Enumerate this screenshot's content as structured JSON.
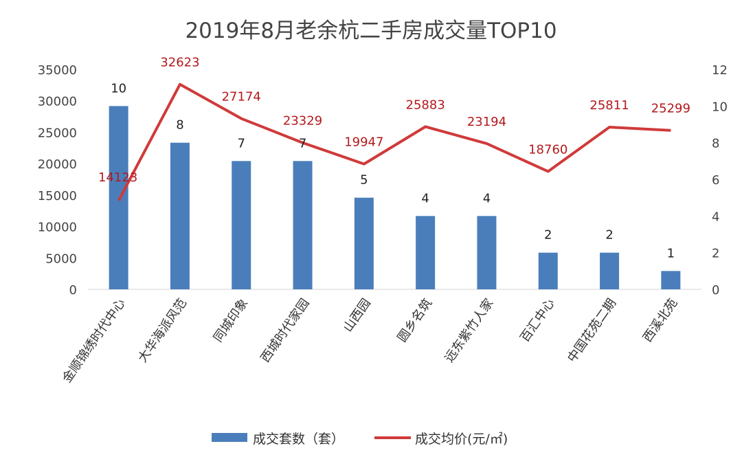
{
  "chart_data": {
    "type": "bar+line",
    "title": "2019年8月老余杭二手房成交量TOP10",
    "categories": [
      "金顺锦绣时代中心",
      "大华海派风范",
      "同城印象",
      "西城时代家园",
      "山西园",
      "圆乡名筑",
      "远东紫竹人家",
      "百汇中心",
      "中国花苑二期",
      "西溪北苑"
    ],
    "series": [
      {
        "name": "成交套数（套）",
        "type": "bar",
        "axis": "right",
        "color": "#4a7ebb",
        "values": [
          10,
          8,
          7,
          7,
          5,
          4,
          4,
          2,
          2,
          1
        ]
      },
      {
        "name": "成交均价(元/㎡)",
        "type": "line",
        "axis": "left",
        "color": "#d03a3a",
        "values": [
          14123,
          32623,
          27174,
          23329,
          19947,
          25883,
          23194,
          18760,
          25811,
          25299
        ]
      }
    ],
    "left_axis": {
      "range": [
        0,
        35000
      ],
      "ticks": [
        "0",
        "5000",
        "10000",
        "15000",
        "20000",
        "25000",
        "30000",
        "35000"
      ]
    },
    "right_axis": {
      "range": [
        0,
        12
      ],
      "ticks": [
        "0",
        "2",
        "4",
        "6",
        "8",
        "10",
        "12"
      ]
    },
    "grid": false,
    "legend_position": "bottom"
  }
}
